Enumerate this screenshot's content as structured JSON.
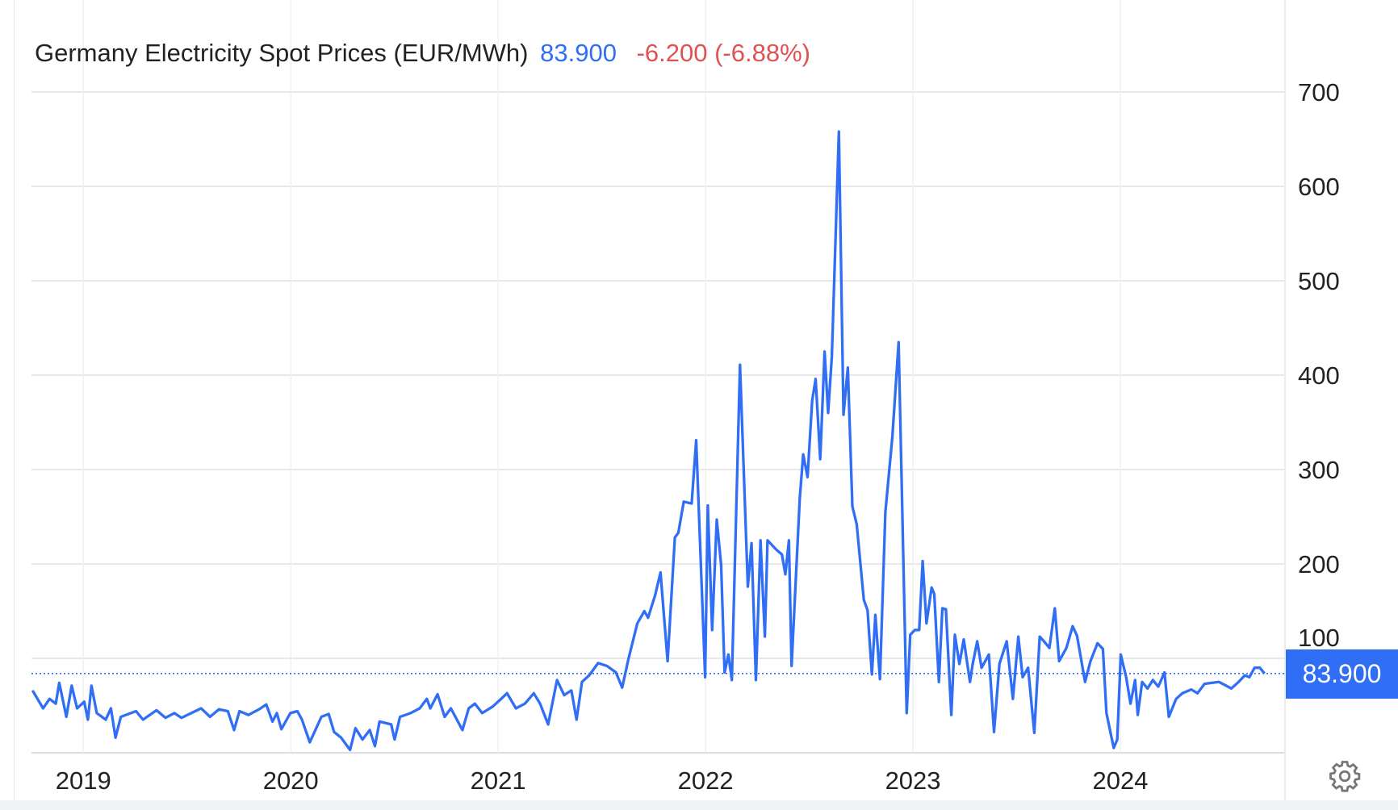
{
  "header": {
    "title": "Germany Electricity Spot Prices (EUR/MWh)",
    "last_value": "83.900",
    "change": "-6.200 (-6.88%)"
  },
  "price_label": "83.900",
  "settings_icon": "gear-icon",
  "colors": {
    "line": "#2f6ef5",
    "change_negative": "#e05252",
    "grid": "#e8e8e8"
  },
  "chart_data": {
    "type": "line",
    "title": "Germany Electricity Spot Prices (EUR/MWh)",
    "xlabel": "",
    "ylabel": "",
    "xlim": [
      2018.75,
      2024.79
    ],
    "ylim": [
      0,
      700
    ],
    "x_ticks": [
      "2019",
      "2020",
      "2021",
      "2022",
      "2023",
      "2024"
    ],
    "y_ticks": [
      "100",
      "200",
      "300",
      "400",
      "500",
      "600",
      "700"
    ],
    "grid": true,
    "last_value": 83.9,
    "x": [
      2018.755,
      2018.806,
      2018.837,
      2018.867,
      2018.884,
      2018.918,
      2018.944,
      2018.97,
      2019.004,
      2019.022,
      2019.039,
      2019.065,
      2019.108,
      2019.133,
      2019.155,
      2019.181,
      2019.254,
      2019.288,
      2019.353,
      2019.396,
      2019.439,
      2019.473,
      2019.568,
      2019.611,
      2019.654,
      2019.697,
      2019.727,
      2019.753,
      2019.796,
      2019.847,
      2019.882,
      2019.912,
      2019.933,
      2019.955,
      2019.998,
      2020.032,
      2020.054,
      2020.092,
      2020.148,
      2020.183,
      2020.209,
      2020.243,
      2020.286,
      2020.312,
      2020.346,
      2020.381,
      2020.406,
      2020.428,
      2020.484,
      2020.501,
      2020.527,
      2020.578,
      2020.622,
      2020.656,
      2020.673,
      2020.708,
      2020.742,
      2020.772,
      2020.828,
      2020.858,
      2020.888,
      2020.923,
      2020.974,
      2021.009,
      2021.043,
      2021.086,
      2021.129,
      2021.172,
      2021.202,
      2021.241,
      2021.284,
      2021.318,
      2021.353,
      2021.378,
      2021.404,
      2021.439,
      2021.482,
      2021.525,
      2021.568,
      2021.598,
      2021.628,
      2021.671,
      2021.705,
      2021.723,
      2021.757,
      2021.783,
      2021.817,
      2021.852,
      2021.869,
      2021.895,
      2021.933,
      2021.955,
      2021.998,
      2022.011,
      2022.032,
      2022.054,
      2022.075,
      2022.092,
      2022.11,
      2022.127,
      2022.166,
      2022.204,
      2022.222,
      2022.243,
      2022.265,
      2022.286,
      2022.299,
      2022.342,
      2022.368,
      2022.385,
      2022.402,
      2022.415,
      2022.454,
      2022.471,
      2022.492,
      2022.514,
      2022.531,
      2022.553,
      2022.574,
      2022.591,
      2022.609,
      2022.643,
      2022.665,
      2022.686,
      2022.708,
      2022.729,
      2022.763,
      2022.781,
      2022.802,
      2022.819,
      2022.841,
      2022.867,
      2022.901,
      2022.931,
      2022.97,
      2022.987,
      2023.009,
      2023.03,
      2023.047,
      2023.065,
      2023.09,
      2023.103,
      2023.125,
      2023.142,
      2023.159,
      2023.185,
      2023.202,
      2023.224,
      2023.245,
      2023.275,
      2023.288,
      2023.31,
      2023.331,
      2023.366,
      2023.391,
      2023.417,
      2023.452,
      2023.482,
      2023.508,
      2023.529,
      2023.555,
      2023.585,
      2023.611,
      2023.632,
      2023.658,
      2023.684,
      2023.705,
      2023.74,
      2023.77,
      2023.791,
      2023.83,
      2023.856,
      2023.89,
      2023.916,
      2023.933,
      2023.968,
      2023.985,
      2024.002,
      2024.028,
      2024.049,
      2024.071,
      2024.084,
      2024.105,
      2024.131,
      2024.157,
      2024.183,
      2024.213,
      2024.234,
      2024.269,
      2024.299,
      2024.342,
      2024.372,
      2024.406,
      2024.441,
      2024.475,
      2024.51,
      2024.535,
      2024.57,
      2024.6,
      2024.622,
      2024.647,
      2024.673,
      2024.695
    ],
    "y": [
      66,
      47,
      57,
      52,
      74,
      38,
      71,
      47,
      54,
      35,
      71,
      42,
      35,
      47,
      16,
      38,
      44,
      35,
      45,
      37,
      42,
      37,
      47,
      38,
      46,
      44,
      24,
      44,
      40,
      46,
      51,
      33,
      42,
      25,
      42,
      44,
      35,
      11,
      38,
      41,
      22,
      16,
      3,
      26,
      14,
      24,
      7,
      33,
      30,
      14,
      38,
      42,
      47,
      57,
      47,
      62,
      38,
      47,
      24,
      47,
      52,
      42,
      49,
      56,
      63,
      47,
      52,
      63,
      52,
      30,
      77,
      61,
      66,
      35,
      75,
      82,
      95,
      92,
      85,
      69,
      99,
      137,
      150,
      143,
      167,
      191,
      97,
      228,
      233,
      266,
      264,
      331,
      80,
      262,
      130,
      247,
      199,
      85,
      104,
      77,
      411,
      176,
      222,
      77,
      225,
      123,
      225,
      215,
      210,
      189,
      225,
      92,
      269,
      316,
      292,
      373,
      396,
      311,
      425,
      360,
      420,
      658,
      358,
      408,
      261,
      242,
      162,
      151,
      83,
      146,
      78,
      255,
      335,
      435,
      42,
      125,
      130,
      130,
      203,
      137,
      175,
      168,
      75,
      153,
      152,
      40,
      125,
      94,
      120,
      75,
      94,
      118,
      90,
      104,
      22,
      94,
      118,
      57,
      123,
      80,
      90,
      21,
      123,
      118,
      111,
      153,
      97,
      111,
      134,
      124,
      75,
      97,
      116,
      110,
      42,
      5,
      14,
      104,
      80,
      52,
      77,
      40,
      75,
      68,
      77,
      70,
      85,
      38,
      57,
      63,
      67,
      63,
      73,
      74,
      75,
      71,
      68,
      75,
      82,
      80,
      90,
      90,
      83.9
    ]
  }
}
